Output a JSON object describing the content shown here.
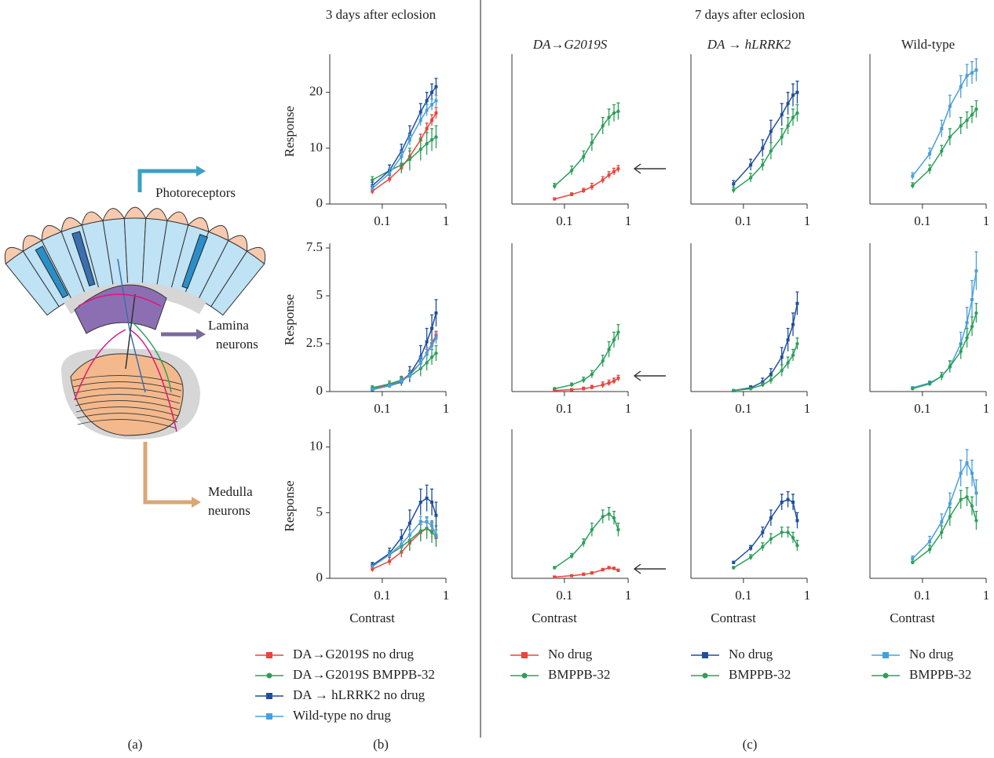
{
  "diagram": {
    "photoreceptors": "Photoreceptors",
    "lamina": [
      "Lamina",
      "neurons"
    ],
    "medulla": [
      "Medulla",
      "neurons"
    ]
  },
  "headings": {
    "left": "3 days after eclosion",
    "right": "7 days after eclosion"
  },
  "panel_labels": [
    "(a)",
    "(b)",
    "(c)"
  ],
  "chart_data": [
    {
      "type": "line",
      "xlog": true,
      "x": [
        0.07,
        0.13,
        0.2,
        0.27,
        0.4,
        0.5,
        0.6,
        0.7
      ],
      "xlim": [
        0.015,
        1
      ],
      "xticks": [
        0.1,
        1
      ],
      "ylim": [
        0,
        26
      ],
      "yticks": [
        0,
        10,
        20
      ],
      "ylabel": "Response",
      "series": [
        {
          "color": "#e8453c",
          "marker": "square",
          "values": [
            2.3,
            4.5,
            6.5,
            8.5,
            11.5,
            13.5,
            15,
            16.3
          ],
          "errors": [
            0.5,
            0.6,
            0.8,
            1,
            1,
            1,
            1,
            1
          ]
        },
        {
          "color": "#2ca05a",
          "marker": "circle",
          "values": [
            4.3,
            6,
            7,
            8,
            9.8,
            10.8,
            11.5,
            12
          ],
          "errors": [
            0.6,
            1,
            1.5,
            2,
            2,
            2,
            2,
            2
          ]
        },
        {
          "color": "#1f4e9c",
          "marker": "square",
          "values": [
            3.3,
            6,
            9.5,
            12.5,
            16.5,
            18.5,
            20,
            21
          ],
          "errors": [
            0.6,
            1,
            1.2,
            1.5,
            1.5,
            1.5,
            1.5,
            1.5
          ]
        },
        {
          "color": "#4a9fdb",
          "marker": "square",
          "values": [
            2.8,
            5.5,
            8.5,
            11.5,
            15,
            16.8,
            17.8,
            18.5
          ],
          "errors": [
            0.5,
            0.8,
            1,
            1,
            1,
            1,
            1,
            1
          ]
        }
      ]
    },
    {
      "type": "line",
      "xlog": true,
      "x": [
        0.07,
        0.13,
        0.2,
        0.27,
        0.4,
        0.5,
        0.6,
        0.7
      ],
      "xlim": [
        0.015,
        1
      ],
      "xticks": [
        0.1,
        1
      ],
      "ylim": [
        0,
        26
      ],
      "title": "DA→G2019S",
      "series": [
        {
          "color": "#2ca05a",
          "marker": "circle",
          "values": [
            3.2,
            6,
            8.5,
            11,
            14,
            15.5,
            16.3,
            16.6
          ],
          "errors": [
            0.5,
            0.8,
            1,
            1.5,
            1.5,
            1.5,
            1.5,
            1.5
          ]
        },
        {
          "color": "#e8453c",
          "marker": "square",
          "values": [
            0.9,
            1.7,
            2.4,
            3.1,
            4.3,
            5.2,
            5.8,
            6.3
          ],
          "errors": [
            0.2,
            0.3,
            0.4,
            0.6,
            0.6,
            0.6,
            0.6,
            0.6
          ]
        }
      ]
    },
    {
      "type": "line",
      "xlog": true,
      "x": [
        0.07,
        0.13,
        0.2,
        0.27,
        0.4,
        0.5,
        0.6,
        0.7
      ],
      "xlim": [
        0.015,
        1
      ],
      "xticks": [
        0.1,
        1
      ],
      "ylim": [
        0,
        26
      ],
      "title": "DA → hLRRK2",
      "series": [
        {
          "color": "#1f4e9c",
          "marker": "square",
          "values": [
            3.6,
            7,
            10,
            13,
            16,
            18,
            19.5,
            20
          ],
          "errors": [
            0.6,
            1,
            1.5,
            2,
            2,
            2,
            2,
            2
          ]
        },
        {
          "color": "#2ca05a",
          "marker": "circle",
          "values": [
            2.5,
            4.7,
            7,
            9.5,
            12,
            14,
            15.5,
            16.3
          ],
          "errors": [
            0.5,
            0.8,
            1,
            1.5,
            1.5,
            1.5,
            1.5,
            1.5
          ]
        }
      ]
    },
    {
      "type": "line",
      "xlog": true,
      "x": [
        0.07,
        0.13,
        0.2,
        0.27,
        0.4,
        0.5,
        0.6,
        0.7
      ],
      "xlim": [
        0.015,
        1
      ],
      "xticks": [
        0.1,
        1
      ],
      "ylim": [
        0,
        26
      ],
      "title": "Wild-type",
      "series": [
        {
          "color": "#4a9fdb",
          "marker": "square",
          "values": [
            5,
            9,
            13.5,
            17.5,
            21,
            23,
            23.5,
            24
          ],
          "errors": [
            0.6,
            1,
            1.5,
            2,
            2,
            2,
            2,
            2
          ]
        },
        {
          "color": "#2ca05a",
          "marker": "circle",
          "values": [
            3.3,
            6.2,
            9.5,
            12,
            14,
            15,
            16,
            17
          ],
          "errors": [
            0.5,
            0.8,
            1,
            1.5,
            1.5,
            1.5,
            1.5,
            1.5
          ]
        }
      ]
    },
    {
      "type": "line",
      "xlog": true,
      "x": [
        0.07,
        0.13,
        0.2,
        0.27,
        0.4,
        0.5,
        0.6,
        0.7
      ],
      "xlim": [
        0.015,
        1
      ],
      "xticks": [
        0.1,
        1
      ],
      "ylim": [
        0,
        7.5
      ],
      "yticks": [
        0,
        2.5,
        5,
        7.5
      ],
      "ylabel": "Response",
      "series": [
        {
          "color": "#e8453c",
          "marker": "square",
          "values": [
            0.15,
            0.35,
            0.6,
            0.9,
            1.5,
            2,
            2.5,
            2.95
          ],
          "errors": [
            0.05,
            0.1,
            0.15,
            0.2,
            0.2,
            0.2,
            0.2,
            0.2
          ]
        },
        {
          "color": "#2ca05a",
          "marker": "circle",
          "values": [
            0.2,
            0.4,
            0.6,
            0.8,
            1.2,
            1.5,
            1.8,
            2
          ],
          "errors": [
            0.1,
            0.15,
            0.2,
            0.3,
            0.4,
            0.4,
            0.4,
            0.4
          ]
        },
        {
          "color": "#1f4e9c",
          "marker": "square",
          "values": [
            0.1,
            0.3,
            0.5,
            0.9,
            1.8,
            2.6,
            3.3,
            4.1
          ],
          "errors": [
            0.05,
            0.1,
            0.2,
            0.4,
            0.6,
            0.7,
            0.7,
            0.7
          ]
        },
        {
          "color": "#4a9fdb",
          "marker": "square",
          "values": [
            0.12,
            0.3,
            0.55,
            0.85,
            1.5,
            2,
            2.4,
            2.8
          ],
          "errors": [
            0.05,
            0.1,
            0.15,
            0.2,
            0.3,
            0.3,
            0.3,
            0.3
          ]
        }
      ]
    },
    {
      "type": "line",
      "xlog": true,
      "x": [
        0.07,
        0.13,
        0.2,
        0.27,
        0.4,
        0.5,
        0.6,
        0.7
      ],
      "xlim": [
        0.015,
        1
      ],
      "xticks": [
        0.1,
        1
      ],
      "ylim": [
        0,
        7.5
      ],
      "series": [
        {
          "color": "#2ca05a",
          "marker": "circle",
          "values": [
            0.15,
            0.35,
            0.6,
            0.9,
            1.6,
            2.2,
            2.7,
            3.1
          ],
          "errors": [
            0.05,
            0.1,
            0.15,
            0.2,
            0.3,
            0.4,
            0.4,
            0.4
          ]
        },
        {
          "color": "#e8453c",
          "marker": "square",
          "values": [
            0.05,
            0.1,
            0.15,
            0.22,
            0.35,
            0.45,
            0.55,
            0.7
          ],
          "errors": [
            0.03,
            0.05,
            0.08,
            0.1,
            0.15,
            0.15,
            0.15,
            0.15
          ]
        }
      ]
    },
    {
      "type": "line",
      "xlog": true,
      "x": [
        0.07,
        0.13,
        0.2,
        0.27,
        0.4,
        0.5,
        0.6,
        0.7
      ],
      "xlim": [
        0.015,
        1
      ],
      "xticks": [
        0.1,
        1
      ],
      "ylim": [
        0,
        7.5
      ],
      "series": [
        {
          "color": "#1f4e9c",
          "marker": "square",
          "values": [
            0.05,
            0.2,
            0.5,
            0.9,
            1.8,
            2.7,
            3.5,
            4.6
          ],
          "errors": [
            0.03,
            0.1,
            0.2,
            0.3,
            0.5,
            0.6,
            0.6,
            0.6
          ]
        },
        {
          "color": "#2ca05a",
          "marker": "circle",
          "values": [
            0.05,
            0.15,
            0.35,
            0.6,
            1.1,
            1.5,
            1.9,
            2.5
          ],
          "errors": [
            0.03,
            0.05,
            0.1,
            0.2,
            0.3,
            0.3,
            0.3,
            0.3
          ]
        }
      ]
    },
    {
      "type": "line",
      "xlog": true,
      "x": [
        0.07,
        0.13,
        0.2,
        0.27,
        0.4,
        0.5,
        0.6,
        0.7
      ],
      "xlim": [
        0.015,
        1
      ],
      "xticks": [
        0.1,
        1
      ],
      "ylim": [
        0,
        7.5
      ],
      "series": [
        {
          "color": "#4a9fdb",
          "marker": "square",
          "values": [
            0.2,
            0.45,
            0.8,
            1.3,
            2.5,
            3.6,
            4.8,
            6.3
          ],
          "errors": [
            0.05,
            0.1,
            0.2,
            0.3,
            0.6,
            0.8,
            1,
            1
          ]
        },
        {
          "color": "#2ca05a",
          "marker": "circle",
          "values": [
            0.15,
            0.4,
            0.8,
            1.3,
            2.1,
            2.8,
            3.4,
            4.1
          ],
          "errors": [
            0.05,
            0.1,
            0.2,
            0.3,
            0.4,
            0.5,
            0.5,
            0.5
          ]
        }
      ]
    },
    {
      "type": "line",
      "xlog": true,
      "x": [
        0.07,
        0.13,
        0.2,
        0.27,
        0.4,
        0.5,
        0.6,
        0.7
      ],
      "xlim": [
        0.015,
        1
      ],
      "xticks": [
        0.1,
        1
      ],
      "ylim": [
        0,
        11
      ],
      "yticks": [
        0,
        5,
        10
      ],
      "ylabel": "Response",
      "xlabel": "Contrast",
      "series": [
        {
          "color": "#e8453c",
          "marker": "square",
          "values": [
            0.7,
            1.3,
            2,
            2.7,
            3.5,
            3.8,
            3.6,
            3.1
          ],
          "errors": [
            0.2,
            0.3,
            0.4,
            0.6,
            0.6,
            0.6,
            0.6,
            0.6
          ]
        },
        {
          "color": "#2ca05a",
          "marker": "circle",
          "values": [
            1,
            1.8,
            2.4,
            2.9,
            3.6,
            3.8,
            3.5,
            3.2
          ],
          "errors": [
            0.2,
            0.3,
            0.5,
            0.8,
            0.8,
            0.8,
            0.8,
            0.8
          ]
        },
        {
          "color": "#1f4e9c",
          "marker": "square",
          "values": [
            1,
            1.9,
            3.1,
            4.2,
            5.8,
            6.1,
            5.8,
            4.8
          ],
          "errors": [
            0.2,
            0.4,
            0.6,
            1,
            1,
            1,
            1,
            1
          ]
        },
        {
          "color": "#4a9fdb",
          "marker": "square",
          "values": [
            0.9,
            1.8,
            2.6,
            3.3,
            4.3,
            4.3,
            4,
            3.3
          ],
          "errors": [
            0.1,
            0.2,
            0.3,
            0.4,
            0.4,
            0.4,
            0.4,
            0.4
          ]
        }
      ]
    },
    {
      "type": "line",
      "xlog": true,
      "x": [
        0.07,
        0.13,
        0.2,
        0.27,
        0.4,
        0.5,
        0.6,
        0.7
      ],
      "xlim": [
        0.015,
        1
      ],
      "xticks": [
        0.1,
        1
      ],
      "ylim": [
        0,
        11
      ],
      "xlabel": "Contrast",
      "series": [
        {
          "color": "#2ca05a",
          "marker": "circle",
          "values": [
            0.8,
            1.7,
            2.7,
            3.7,
            4.7,
            4.9,
            4.6,
            3.7
          ],
          "errors": [
            0.1,
            0.2,
            0.3,
            0.5,
            0.5,
            0.5,
            0.5,
            0.5
          ]
        },
        {
          "color": "#e8453c",
          "marker": "square",
          "values": [
            0.1,
            0.2,
            0.3,
            0.4,
            0.65,
            0.8,
            0.75,
            0.6
          ],
          "errors": [
            0.05,
            0.05,
            0.1,
            0.1,
            0.1,
            0.1,
            0.1,
            0.1
          ]
        }
      ]
    },
    {
      "type": "line",
      "xlog": true,
      "x": [
        0.07,
        0.13,
        0.2,
        0.27,
        0.4,
        0.5,
        0.6,
        0.7
      ],
      "xlim": [
        0.015,
        1
      ],
      "xticks": [
        0.1,
        1
      ],
      "ylim": [
        0,
        11
      ],
      "xlabel": "Contrast",
      "series": [
        {
          "color": "#1f4e9c",
          "marker": "square",
          "values": [
            1.2,
            2.3,
            3.5,
            4.6,
            5.8,
            6,
            5.8,
            4.4
          ],
          "errors": [
            0.1,
            0.2,
            0.4,
            0.6,
            0.6,
            0.6,
            0.6,
            0.6
          ]
        },
        {
          "color": "#2ca05a",
          "marker": "circle",
          "values": [
            0.8,
            1.6,
            2.4,
            3,
            3.5,
            3.5,
            3.1,
            2.5
          ],
          "errors": [
            0.1,
            0.2,
            0.3,
            0.4,
            0.4,
            0.4,
            0.4,
            0.4
          ]
        }
      ]
    },
    {
      "type": "line",
      "xlog": true,
      "x": [
        0.07,
        0.13,
        0.2,
        0.27,
        0.4,
        0.5,
        0.6,
        0.7
      ],
      "xlim": [
        0.015,
        1
      ],
      "xticks": [
        0.1,
        1
      ],
      "ylim": [
        0,
        11
      ],
      "xlabel": "Contrast",
      "series": [
        {
          "color": "#4a9fdb",
          "marker": "square",
          "values": [
            1.5,
            2.8,
            4.3,
            5.7,
            8,
            8.8,
            8,
            6.5
          ],
          "errors": [
            0.2,
            0.4,
            0.6,
            0.8,
            1,
            1,
            1,
            1
          ]
        },
        {
          "color": "#2ca05a",
          "marker": "circle",
          "values": [
            1.2,
            2.2,
            3.5,
            4.7,
            6,
            6.2,
            5.5,
            4.4
          ],
          "errors": [
            0.1,
            0.3,
            0.5,
            0.7,
            0.7,
            0.7,
            0.7,
            0.7
          ]
        }
      ]
    }
  ],
  "legends": [
    {
      "entries": [
        {
          "name": "DA→G2019S no drug",
          "color": "#e8453c",
          "marker": "square"
        },
        {
          "name": "DA→G2019S BMPPB-32",
          "color": "#2ca05a",
          "marker": "circle"
        },
        {
          "name": "DA → hLRRK2 no drug",
          "color": "#1f4e9c",
          "marker": "square"
        },
        {
          "name": "Wild-type no drug",
          "color": "#4a9fdb",
          "marker": "square"
        }
      ]
    },
    {
      "entries": [
        {
          "name": "No drug",
          "color": "#e8453c",
          "marker": "square"
        },
        {
          "name": "BMPPB-32",
          "color": "#2ca05a",
          "marker": "circle"
        }
      ]
    },
    {
      "entries": [
        {
          "name": "No drug",
          "color": "#1f4e9c",
          "marker": "square"
        },
        {
          "name": "BMPPB-32",
          "color": "#2ca05a",
          "marker": "circle"
        }
      ]
    },
    {
      "entries": [
        {
          "name": "No drug",
          "color": "#4a9fdb",
          "marker": "square"
        },
        {
          "name": "BMPPB-32",
          "color": "#2ca05a",
          "marker": "circle"
        }
      ]
    }
  ]
}
